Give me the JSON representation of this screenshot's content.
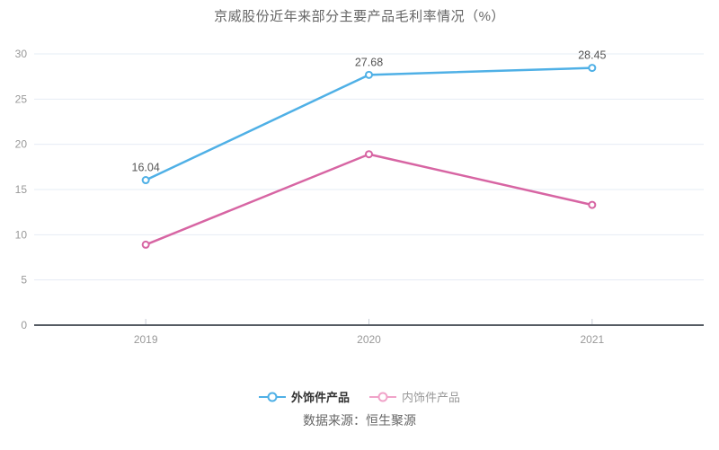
{
  "title": "京威股份近年来部分主要产品毛利率情况（%）",
  "source_note": "数据来源：恒生聚源",
  "colors": {
    "series_blue": "#4fb0e6",
    "series_pink": "#d765a3",
    "legend_pink": "#f0a3c9",
    "gridline": "#e6ecf5",
    "axis_line": "#555b63",
    "axis_label": "#999999",
    "point_label": "#555555",
    "title_text": "#666666"
  },
  "chart_data": {
    "type": "line",
    "title": "京威股份近年来部分主要产品毛利率情况（%）",
    "categories": [
      "2019",
      "2020",
      "2021"
    ],
    "series": [
      {
        "name": "外饰件产品",
        "color": "#4fb0e6",
        "legend_color": "#4fb0e6",
        "values": [
          16.04,
          27.68,
          28.45
        ],
        "show_labels": true,
        "labels": [
          "16.04",
          "27.68",
          "28.45"
        ]
      },
      {
        "name": "内饰件产品",
        "color": "#d765a3",
        "legend_color": "#f0a3c9",
        "values": [
          8.9,
          18.9,
          13.3
        ],
        "show_labels": false,
        "labels": []
      }
    ],
    "xlabel": "",
    "ylabel": "",
    "ylim": [
      0,
      30
    ],
    "yticks": [
      0,
      5,
      10,
      15,
      20,
      25,
      30
    ],
    "grid": true,
    "legend_position": "bottom",
    "marker": "hollow-circle"
  }
}
